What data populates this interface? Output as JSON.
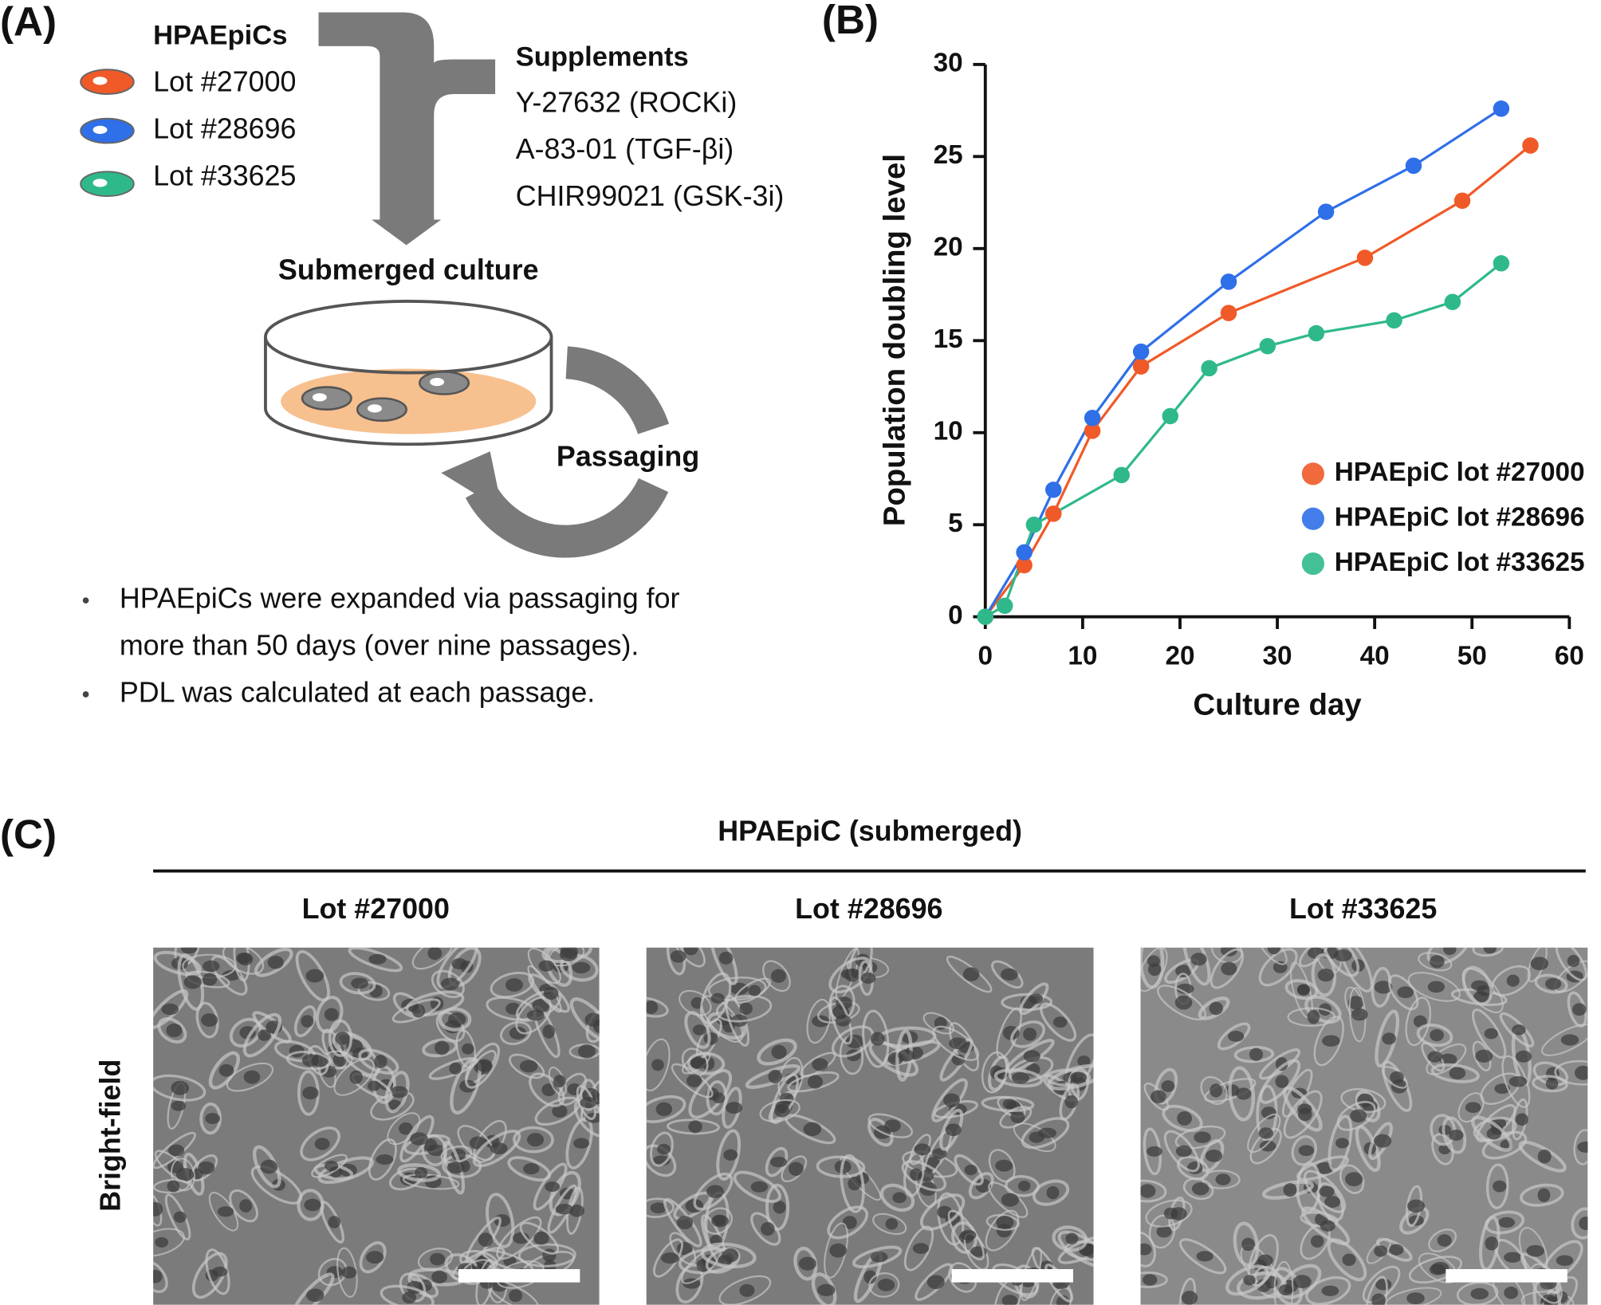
{
  "panel_a": {
    "label": "(A)",
    "cells_title": "HPAEpiCs",
    "lots": [
      "Lot #27000",
      "Lot #28696",
      "Lot #33625"
    ],
    "supplements_title": "Supplements",
    "supplements": [
      "Y-27632 (ROCKi)",
      "A-83-01 (TGF-βi)",
      "CHIR99021 (GSK-3i)"
    ],
    "culture": "Submerged culture",
    "passaging": "Passaging",
    "bullets": [
      [
        "HPAEpiCs were expanded via passaging for",
        "more than 50 days (over nine passages)."
      ],
      [
        "PDL was calculated at each passage."
      ]
    ]
  },
  "chart_data": {
    "type": "line",
    "label": "(B)",
    "x_label": "Culture day",
    "y_label": "Population doubling level",
    "xlim": [
      0,
      60
    ],
    "xticks": [
      0,
      10,
      20,
      30,
      40,
      50,
      60
    ],
    "ylim": [
      0,
      30
    ],
    "yticks": [
      0,
      5,
      10,
      15,
      20,
      25,
      30
    ],
    "legend": "lower right",
    "series": [
      {
        "name": "HPAEpiC lot #27000",
        "color": "#f05a28",
        "x": [
          0,
          4,
          7,
          11,
          16,
          25,
          39,
          49,
          56
        ],
        "values": [
          0,
          2.8,
          5.6,
          10.1,
          13.6,
          16.5,
          19.5,
          22.6,
          25.6
        ]
      },
      {
        "name": "HPAEpiC lot #28696",
        "color": "#2f6fe8",
        "x": [
          0,
          4,
          7,
          11,
          16,
          25,
          35,
          44,
          53
        ],
        "values": [
          0,
          3.5,
          6.9,
          10.8,
          14.4,
          18.2,
          22.0,
          24.5,
          27.6
        ]
      },
      {
        "name": "HPAEpiC lot #33625",
        "color": "#2fb98a",
        "x": [
          0,
          2,
          5,
          14,
          19,
          23,
          29,
          34,
          42,
          48,
          53
        ],
        "values": [
          0,
          0.6,
          5.0,
          7.7,
          10.9,
          13.5,
          14.7,
          15.4,
          16.1,
          17.1,
          19.2
        ]
      }
    ]
  },
  "panel_c": {
    "label": "(C)",
    "title": "HPAEpiC (submerged)",
    "columns": [
      "Lot #27000",
      "Lot #28696",
      "Lot #33625"
    ],
    "row_label": "Bright-field"
  }
}
